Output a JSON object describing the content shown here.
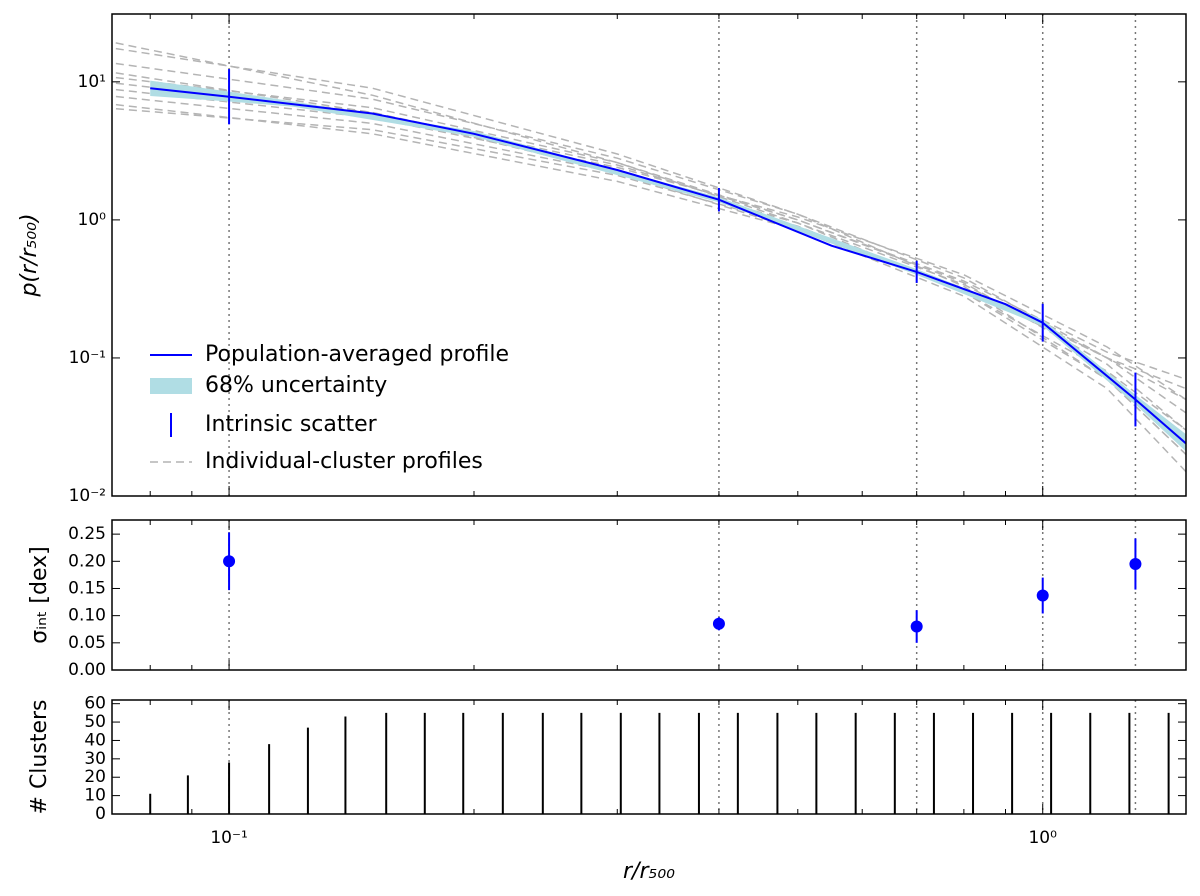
{
  "chart_data": [
    {
      "type": "line",
      "ylabel": "p(r/r₅₀₀)",
      "log_y": true,
      "ylim": [
        0.01,
        31
      ],
      "yticks": [
        {
          "value": 0.01,
          "label": "10⁻²"
        },
        {
          "value": 0.1,
          "label": "10⁻¹"
        },
        {
          "value": 1,
          "label": "10⁰"
        },
        {
          "value": 10,
          "label": "10¹"
        }
      ],
      "vlines": [
        0.1,
        0.4,
        0.7,
        1.0,
        1.3
      ],
      "legend": "lower left",
      "series": [
        {
          "name": "Population-averaged profile",
          "color": "#0000ff",
          "x": [
            0.08,
            0.1,
            0.15,
            0.2,
            0.3,
            0.4,
            0.55,
            0.7,
            0.9,
            1.0,
            1.3,
            1.5
          ],
          "values": [
            9.0,
            7.8,
            5.9,
            4.2,
            2.3,
            1.4,
            0.65,
            0.42,
            0.245,
            0.18,
            0.05,
            0.024
          ]
        },
        {
          "name": "68% uncertainty",
          "color": "#b0dde4",
          "kind": "band",
          "x": [
            0.08,
            0.1,
            0.12,
            0.2,
            0.4,
            0.7,
            1.0,
            1.3,
            1.5
          ],
          "lower": [
            7.9,
            7.2,
            6.6,
            4.0,
            1.34,
            0.4,
            0.17,
            0.046,
            0.021
          ],
          "upper": [
            10.2,
            8.5,
            7.2,
            4.4,
            1.46,
            0.44,
            0.19,
            0.054,
            0.028
          ]
        },
        {
          "name": "Intrinsic scatter",
          "color": "#0000ff",
          "kind": "errorbar",
          "x": [
            0.1,
            0.4,
            0.7,
            1.0,
            1.3
          ],
          "values": [
            7.8,
            1.4,
            0.42,
            0.18,
            0.05
          ],
          "errors": [
            0.2,
            0.085,
            0.08,
            0.137,
            0.195
          ]
        },
        {
          "name": "Individual-cluster profiles",
          "color": "#b4b4b4",
          "kind": "dashed",
          "profiles": [
            {
              "x": [
                0.07,
                0.15,
                0.3,
                0.5,
                0.8,
                1.2,
                1.5
              ],
              "values": [
                18,
                9,
                3,
                1.1,
                0.33,
                0.07,
                0.02
              ]
            },
            {
              "x": [
                0.07,
                0.15,
                0.3,
                0.5,
                0.8,
                1.2,
                1.5
              ],
              "values": [
                14,
                7.5,
                2.8,
                1.1,
                0.38,
                0.1,
                0.04
              ]
            },
            {
              "x": [
                0.07,
                0.15,
                0.3,
                0.5,
                0.8,
                1.2,
                1.5
              ],
              "values": [
                11,
                6.5,
                2.6,
                1.0,
                0.35,
                0.09,
                0.03
              ]
            },
            {
              "x": [
                0.07,
                0.15,
                0.3,
                0.5,
                0.8,
                1.2,
                1.5
              ],
              "values": [
                8,
                5,
                2.2,
                0.95,
                0.34,
                0.1,
                0.05
              ]
            },
            {
              "x": [
                0.07,
                0.15,
                0.3,
                0.5,
                0.8,
                1.2,
                1.5
              ],
              "values": [
                7,
                4.2,
                1.9,
                0.85,
                0.32,
                0.1,
                0.06
              ]
            },
            {
              "x": [
                0.07,
                0.15,
                0.3,
                0.5,
                0.8,
                1.2,
                1.5
              ],
              "values": [
                12,
                6,
                2.2,
                0.85,
                0.28,
                0.06,
                0.015
              ]
            },
            {
              "x": [
                0.07,
                0.15,
                0.3,
                0.5,
                0.8,
                1.2,
                1.5
              ],
              "values": [
                9,
                5.5,
                2.4,
                1.05,
                0.4,
                0.12,
                0.05
              ]
            },
            {
              "x": [
                0.07,
                0.15,
                0.3,
                0.5,
                0.8,
                1.2,
                1.5
              ],
              "values": [
                20,
                8,
                2.6,
                0.95,
                0.3,
                0.07,
                0.02
              ]
            },
            {
              "x": [
                0.07,
                0.15,
                0.3,
                0.5,
                0.8,
                1.2,
                1.5
              ],
              "values": [
                6.5,
                4.5,
                2.1,
                0.9,
                0.3,
                0.08,
                0.03
              ]
            },
            {
              "x": [
                0.07,
                0.15,
                0.3,
                0.5,
                0.8,
                1.2,
                1.5
              ],
              "values": [
                10,
                6,
                2.5,
                1.0,
                0.36,
                0.11,
                0.07
              ]
            }
          ]
        }
      ]
    },
    {
      "type": "scatter",
      "ylabel": "σᵢₙₜ [dex]",
      "color": "#0000ff",
      "ylim": [
        0,
        0.276
      ],
      "yticks": [
        {
          "value": 0,
          "label": "0.00"
        },
        0.05,
        {
          "value": 0.1,
          "label": "0.10"
        },
        0.15,
        {
          "value": 0.2,
          "label": "0.20"
        },
        0.25
      ],
      "x": [
        0.1,
        0.4,
        0.7,
        1.0,
        1.3
      ],
      "values": [
        0.2,
        0.085,
        0.08,
        0.137,
        0.195
      ],
      "errors": [
        0.053,
        0.012,
        0.03,
        0.033,
        0.047
      ]
    },
    {
      "type": "bar",
      "ylabel": "# Clusters",
      "xlabel": "r/r₅₀₀",
      "color": "#000000",
      "log_x": true,
      "xlim": [
        0.0718,
        1.5
      ],
      "xticks": [
        {
          "value": 0.1,
          "label": "10⁻¹"
        },
        {
          "value": 1,
          "label": "10⁰"
        }
      ],
      "xminor": [
        0.08,
        0.09,
        0.2,
        0.3,
        0.4,
        0.5,
        0.6,
        0.7,
        0.8,
        0.9
      ],
      "ylim": [
        0,
        62
      ],
      "yticks": [
        0,
        10,
        20,
        30,
        40,
        50,
        60
      ],
      "x": [
        0.08,
        0.089,
        0.1,
        0.112,
        0.125,
        0.139,
        0.156,
        0.174,
        0.194,
        0.217,
        0.243,
        0.271,
        0.303,
        0.338,
        0.378,
        0.422,
        0.472,
        0.527,
        0.589,
        0.658,
        0.735,
        0.821,
        0.917,
        1.024,
        1.144,
        1.278,
        1.428
      ],
      "values": [
        11,
        21,
        28,
        38,
        47,
        53,
        55,
        55,
        55,
        55,
        55,
        55,
        55,
        55,
        55,
        55,
        55,
        55,
        55,
        55,
        55,
        55,
        55,
        55,
        55,
        55,
        55
      ]
    }
  ]
}
